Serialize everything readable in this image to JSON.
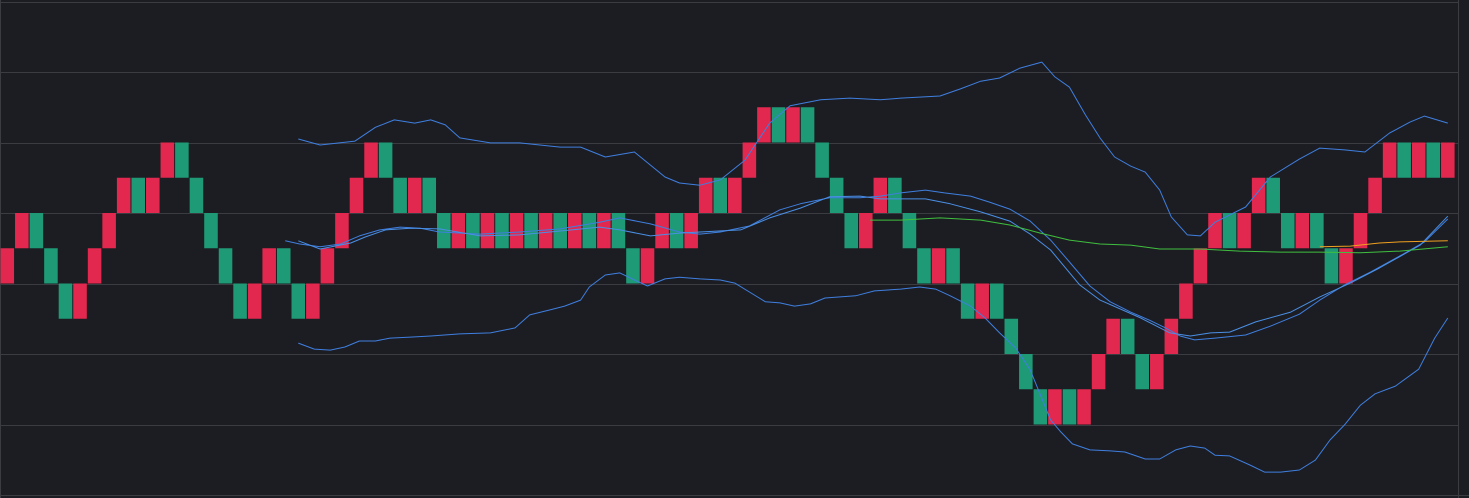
{
  "chart_data": {
    "type": "renko",
    "up_color": "#e2284f",
    "down_color": "#1e9a76",
    "xlim": [
      0,
      100.2
    ],
    "ylim": [
      0,
      14
    ],
    "yticks": [
      2,
      4,
      6,
      8,
      10,
      12,
      14
    ],
    "grid": true,
    "open": [
      6,
      7,
      8,
      7,
      6,
      5,
      6,
      7,
      8,
      9,
      8,
      9,
      10,
      9,
      8,
      7,
      6,
      5,
      6,
      7,
      6,
      5,
      6,
      7,
      8,
      9,
      10,
      9,
      8,
      9,
      8,
      7,
      8,
      7,
      8,
      7,
      8,
      7,
      8,
      7,
      8,
      7,
      8,
      7,
      6,
      7,
      8,
      7,
      8,
      9,
      8,
      9,
      10,
      11,
      10,
      11,
      10,
      9,
      8,
      7,
      8,
      9,
      8,
      7,
      6,
      7,
      6,
      5,
      6,
      5,
      4,
      3,
      2,
      3,
      2,
      3,
      4,
      5,
      4,
      3,
      4,
      5,
      6,
      7,
      8,
      7,
      8,
      9,
      8,
      7,
      8,
      7,
      6,
      7,
      8,
      9,
      10,
      9,
      10,
      9
    ],
    "close": [
      7,
      8,
      7,
      6,
      5,
      6,
      7,
      8,
      9,
      8,
      9,
      10,
      9,
      8,
      7,
      6,
      5,
      6,
      7,
      6,
      5,
      6,
      7,
      8,
      9,
      10,
      9,
      8,
      9,
      8,
      7,
      8,
      7,
      8,
      7,
      8,
      7,
      8,
      7,
      8,
      7,
      8,
      7,
      6,
      7,
      8,
      7,
      8,
      9,
      8,
      9,
      10,
      11,
      10,
      11,
      10,
      9,
      8,
      7,
      8,
      9,
      8,
      7,
      6,
      7,
      6,
      5,
      6,
      5,
      4,
      3,
      2,
      3,
      2,
      3,
      4,
      5,
      4,
      3,
      4,
      5,
      6,
      7,
      8,
      7,
      8,
      9,
      8,
      7,
      8,
      7,
      6,
      7,
      8,
      9,
      10,
      9,
      10,
      9,
      10
    ],
    "series": [
      {
        "color": "#3f7fe0",
        "x": [
          20.5,
          22.0,
          24.4,
          25.8,
          27.1,
          28.5,
          29.6,
          30.6,
          31.6,
          33.7,
          35.7,
          38.5,
          39.9,
          41.6,
          43.6,
          45.7,
          46.7,
          48.1,
          49.5,
          51.2,
          52.9,
          54.3,
          56.4,
          58.4,
          60.5,
          61.9,
          64.6,
          66.0,
          67.4,
          68.7,
          70.1,
          71.6,
          72.5,
          73.5,
          74.6,
          75.6,
          76.6,
          77.7,
          78.7,
          79.7,
          80.5,
          81.6,
          82.5,
          83.5,
          85.6,
          87.3,
          89.3,
          90.7,
          92.4,
          93.8,
          95.5,
          96.9,
          97.9,
          99.5
        ],
        "values": [
          10.1,
          9.93,
          10.04,
          10.43,
          10.64,
          10.55,
          10.64,
          10.5,
          10.13,
          9.99,
          9.99,
          9.87,
          9.87,
          9.59,
          9.73,
          9.02,
          8.85,
          8.79,
          8.94,
          9.5,
          10.55,
          11.04,
          11.21,
          11.26,
          11.21,
          11.26,
          11.32,
          11.52,
          11.74,
          11.83,
          12.11,
          12.28,
          11.86,
          11.57,
          10.78,
          10.13,
          9.59,
          9.33,
          9.16,
          8.65,
          7.89,
          7.38,
          7.35,
          7.74,
          8.17,
          9.02,
          9.53,
          9.84,
          9.79,
          9.73,
          10.27,
          10.58,
          10.75,
          10.55
        ]
      },
      {
        "color": "#3f7fe0",
        "x": [
          20.5,
          21.6,
          22.7,
          23.7,
          24.7,
          25.8,
          26.8,
          28.2,
          29.6,
          31.6,
          33.7,
          35.4,
          36.4,
          37.8,
          38.8,
          39.9,
          40.5,
          41.6,
          42.6,
          43.6,
          44.5,
          45.7,
          46.7,
          48.1,
          49.5,
          50.5,
          51.5,
          52.6,
          53.6,
          54.6,
          55.7,
          56.7,
          58.8,
          60.1,
          61.9,
          63.2,
          64.3,
          65.3,
          66.7,
          67.7,
          68.7,
          69.8,
          70.8,
          72.2,
          72.9,
          73.7,
          74.9,
          76.3,
          77.3,
          78.7,
          79.7,
          80.8,
          81.8,
          82.8,
          83.5,
          84.5,
          85.9,
          86.9,
          88.0,
          89.3,
          90.4,
          91.4,
          92.4,
          93.5,
          94.5,
          95.9,
          97.5,
          98.6,
          99.5
        ],
        "values": [
          4.31,
          4.14,
          4.11,
          4.2,
          4.37,
          4.37,
          4.45,
          4.48,
          4.51,
          4.57,
          4.6,
          4.74,
          5.11,
          5.25,
          5.36,
          5.53,
          5.9,
          6.24,
          6.3,
          6.1,
          5.93,
          6.13,
          6.18,
          6.13,
          6.1,
          6.01,
          5.76,
          5.48,
          5.45,
          5.36,
          5.42,
          5.59,
          5.65,
          5.79,
          5.84,
          5.9,
          5.84,
          5.65,
          5.36,
          5.02,
          4.6,
          4.17,
          3.55,
          2.13,
          1.79,
          1.45,
          1.28,
          1.25,
          1.22,
          1.02,
          1.02,
          1.28,
          1.39,
          1.33,
          1.13,
          1.11,
          0.85,
          0.65,
          0.65,
          0.71,
          0.99,
          1.56,
          1.99,
          2.55,
          2.87,
          3.09,
          3.57,
          4.45,
          5.02
        ]
      },
      {
        "color": "#3f7fe0",
        "x": [
          19.6,
          20.6,
          22.0,
          23.4,
          24.7,
          26.1,
          27.5,
          28.9,
          30.2,
          33.0,
          35.7,
          38.5,
          41.2,
          42.6,
          44.7,
          46.7,
          48.1,
          49.5,
          51.5,
          53.6,
          55.0,
          57.0,
          59.1,
          60.5,
          61.9,
          63.6,
          64.9,
          66.7,
          68.0,
          69.4,
          70.8,
          72.2,
          73.5,
          74.9,
          76.3,
          77.7,
          79.0,
          80.1,
          81.1,
          82.1,
          83.5,
          85.6,
          87.3,
          89.3,
          90.7,
          92.4,
          94.2,
          96.2,
          97.9,
          99.5
        ],
        "values": [
          7.21,
          7.12,
          7.04,
          7.12,
          7.35,
          7.52,
          7.6,
          7.57,
          7.46,
          7.4,
          7.46,
          7.55,
          7.74,
          7.86,
          7.69,
          7.46,
          7.4,
          7.46,
          7.63,
          8.09,
          8.26,
          8.43,
          8.43,
          8.48,
          8.57,
          8.65,
          8.57,
          8.48,
          8.31,
          8.11,
          7.77,
          7.23,
          6.61,
          5.93,
          5.48,
          5.19,
          4.96,
          4.74,
          4.51,
          4.4,
          4.45,
          4.54,
          4.79,
          5.13,
          5.53,
          5.96,
          6.33,
          6.78,
          7.18,
          7.83
        ]
      },
      {
        "color": "#4a8fe6",
        "x": [
          20.5,
          22.0,
          24.1,
          25.1,
          26.5,
          28.2,
          30.2,
          33.0,
          35.7,
          38.5,
          41.2,
          42.6,
          44.7,
          46.7,
          48.1,
          50.9,
          52.9,
          55.0,
          57.0,
          59.1,
          60.5,
          61.9,
          63.6,
          65.3,
          67.4,
          69.4,
          70.8,
          72.2,
          74.2,
          75.6,
          78.4,
          80.4,
          81.8,
          83.2,
          84.5,
          86.3,
          88.7,
          90.7,
          92.8,
          94.8,
          97.6,
          99.5
        ],
        "values": [
          7.21,
          6.98,
          7.15,
          7.32,
          7.52,
          7.57,
          7.55,
          7.35,
          7.38,
          7.49,
          7.6,
          7.52,
          7.35,
          7.43,
          7.46,
          7.52,
          7.86,
          8.14,
          8.46,
          8.48,
          8.4,
          8.4,
          8.4,
          8.26,
          8.03,
          7.77,
          7.4,
          6.95,
          5.96,
          5.53,
          5.02,
          4.6,
          4.51,
          4.6,
          4.62,
          4.91,
          5.19,
          5.62,
          6.01,
          6.44,
          7.09,
          7.91
        ]
      },
      {
        "color": "#3fbf3f",
        "x": [
          59.8,
          61.9,
          64.6,
          67.4,
          69.4,
          71.5,
          73.5,
          75.6,
          77.7,
          79.7,
          82.5,
          85.2,
          88.0,
          90.7,
          93.5,
          96.2,
          99.5
        ],
        "values": [
          7.8,
          7.8,
          7.86,
          7.8,
          7.66,
          7.43,
          7.23,
          7.12,
          7.09,
          6.98,
          6.98,
          6.92,
          6.89,
          6.89,
          6.87,
          6.92,
          7.04
        ]
      },
      {
        "color": "#f0a020",
        "x": [
          90.7,
          92.8,
          94.8,
          96.2,
          99.5
        ],
        "values": [
          7.04,
          7.06,
          7.15,
          7.18,
          7.21
        ]
      }
    ]
  }
}
